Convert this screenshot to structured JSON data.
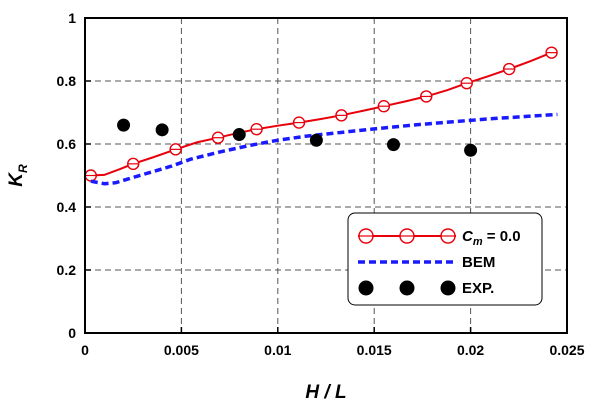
{
  "chart_data": {
    "type": "line",
    "xlabel": "H / L",
    "ylabel": {
      "main": "K",
      "sub": "R"
    },
    "xlim": [
      0,
      0.025
    ],
    "ylim": [
      0,
      1
    ],
    "x_ticks": [
      "0",
      "0.005",
      "0.01",
      "0.015",
      "0.02",
      "0.025"
    ],
    "x_tick_values": [
      0,
      0.005,
      0.01,
      0.015,
      0.02,
      0.025
    ],
    "y_ticks": [
      "0",
      "0.2",
      "0.4",
      "0.6",
      "0.8",
      "1"
    ],
    "y_tick_values": [
      0,
      0.2,
      0.4,
      0.6,
      0.8,
      1
    ],
    "grid": true,
    "legend_position": "bottom-right",
    "series": [
      {
        "key": "cm",
        "legend": {
          "main": "C",
          "sub": "m",
          "rest": " = 0.0"
        },
        "style": "line-with-open-circles",
        "color": "#e8000b",
        "points": [
          [
            0.0003,
            0.5
          ],
          [
            0.0025,
            0.537
          ],
          [
            0.0047,
            0.583
          ],
          [
            0.0069,
            0.62
          ],
          [
            0.0089,
            0.647
          ],
          [
            0.0111,
            0.668
          ],
          [
            0.0133,
            0.691
          ],
          [
            0.0155,
            0.72
          ],
          [
            0.0177,
            0.751
          ],
          [
            0.0198,
            0.793
          ],
          [
            0.022,
            0.838
          ],
          [
            0.0242,
            0.89
          ]
        ],
        "line": [
          [
            0.0003,
            0.5
          ],
          [
            0.001,
            0.502
          ],
          [
            0.0018,
            0.52
          ],
          [
            0.0025,
            0.537
          ],
          [
            0.0035,
            0.557
          ],
          [
            0.0047,
            0.583
          ],
          [
            0.0058,
            0.605
          ],
          [
            0.0069,
            0.62
          ],
          [
            0.008,
            0.636
          ],
          [
            0.0089,
            0.647
          ],
          [
            0.01,
            0.658
          ],
          [
            0.0111,
            0.668
          ],
          [
            0.0122,
            0.679
          ],
          [
            0.0133,
            0.691
          ],
          [
            0.0144,
            0.705
          ],
          [
            0.0155,
            0.72
          ],
          [
            0.0166,
            0.735
          ],
          [
            0.0177,
            0.751
          ],
          [
            0.0188,
            0.771
          ],
          [
            0.0198,
            0.793
          ],
          [
            0.0209,
            0.815
          ],
          [
            0.022,
            0.838
          ],
          [
            0.0231,
            0.863
          ],
          [
            0.0242,
            0.89
          ]
        ]
      },
      {
        "key": "bem",
        "legend": {
          "main": "BEM"
        },
        "style": "dashed-line",
        "color": "#1a1aff",
        "line": [
          [
            0.0003,
            0.482
          ],
          [
            0.001,
            0.474
          ],
          [
            0.0016,
            0.477
          ],
          [
            0.0025,
            0.494
          ],
          [
            0.0035,
            0.512
          ],
          [
            0.0045,
            0.53
          ],
          [
            0.0055,
            0.552
          ],
          [
            0.007,
            0.575
          ],
          [
            0.0085,
            0.595
          ],
          [
            0.01,
            0.612
          ],
          [
            0.0115,
            0.625
          ],
          [
            0.013,
            0.635
          ],
          [
            0.015,
            0.648
          ],
          [
            0.017,
            0.66
          ],
          [
            0.019,
            0.67
          ],
          [
            0.021,
            0.68
          ],
          [
            0.023,
            0.688
          ],
          [
            0.0245,
            0.694
          ]
        ]
      },
      {
        "key": "exp",
        "legend": {
          "main": "EXP."
        },
        "style": "filled-markers",
        "color": "#000000",
        "points": [
          [
            0.002,
            0.66
          ],
          [
            0.004,
            0.645
          ],
          [
            0.008,
            0.63
          ],
          [
            0.012,
            0.612
          ],
          [
            0.016,
            0.598
          ],
          [
            0.02,
            0.58
          ]
        ]
      }
    ]
  }
}
